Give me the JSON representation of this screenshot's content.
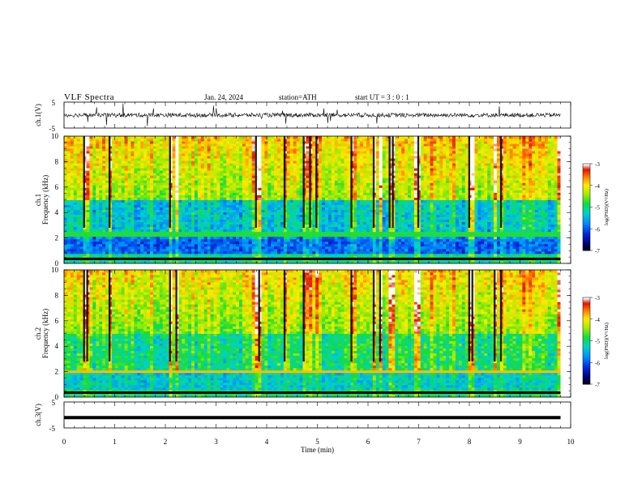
{
  "header": {
    "title": "VLF  Spectra",
    "date": "Jan. 24, 2024",
    "station": "station=ATH",
    "start_ut": "start  UT =   3 : 0  : 1"
  },
  "chart_data": [
    {
      "type": "line",
      "panel": "ch1-waveform",
      "ylabel": "ch.1(V)",
      "yticklabels": [
        "5",
        "-5"
      ],
      "ylim": [
        -5,
        5
      ],
      "xlim": [
        0,
        9.8
      ],
      "description_values": "dense noisy waveform around 0 V with spikes"
    },
    {
      "type": "heatmap",
      "panel": "ch1-spectrogram",
      "ylabel": "Frequency (kHz)",
      "side_label": "ch.1",
      "yticks": [
        0,
        2,
        4,
        6,
        8,
        10
      ],
      "ylim": [
        0,
        10
      ],
      "xlim": [
        0,
        9.8
      ],
      "colorbar": {
        "label": "log(PSD)(V²/Hz)",
        "ticks": [
          -3,
          -4,
          -5,
          -6,
          -7
        ],
        "range": [
          -7,
          -3
        ]
      }
    },
    {
      "type": "heatmap",
      "panel": "ch2-spectrogram",
      "ylabel": "Frequency (kHz)",
      "side_label": "ch.2",
      "yticks": [
        0,
        2,
        4,
        6,
        8,
        10
      ],
      "ylim": [
        0,
        10
      ],
      "xlim": [
        0,
        9.8
      ],
      "colorbar": {
        "label": "log(PSD)(V²/Hz)",
        "ticks": [
          -3,
          -4,
          -5,
          -6,
          -7
        ],
        "range": [
          -7,
          -3
        ]
      }
    },
    {
      "type": "line",
      "panel": "ch3-waveform",
      "ylabel": "ch.3(V)",
      "yticklabels": [
        "5",
        "-5"
      ],
      "ylim": [
        -5,
        5
      ],
      "xlim": [
        0,
        9.8
      ],
      "description_values": "flat thick line near -1 V"
    }
  ],
  "xaxis": {
    "label": "Time  (min)",
    "ticks": [
      "0",
      "1",
      "2",
      "3",
      "4",
      "5",
      "6",
      "7",
      "8",
      "9",
      "10"
    ],
    "range": [
      0,
      10
    ]
  }
}
